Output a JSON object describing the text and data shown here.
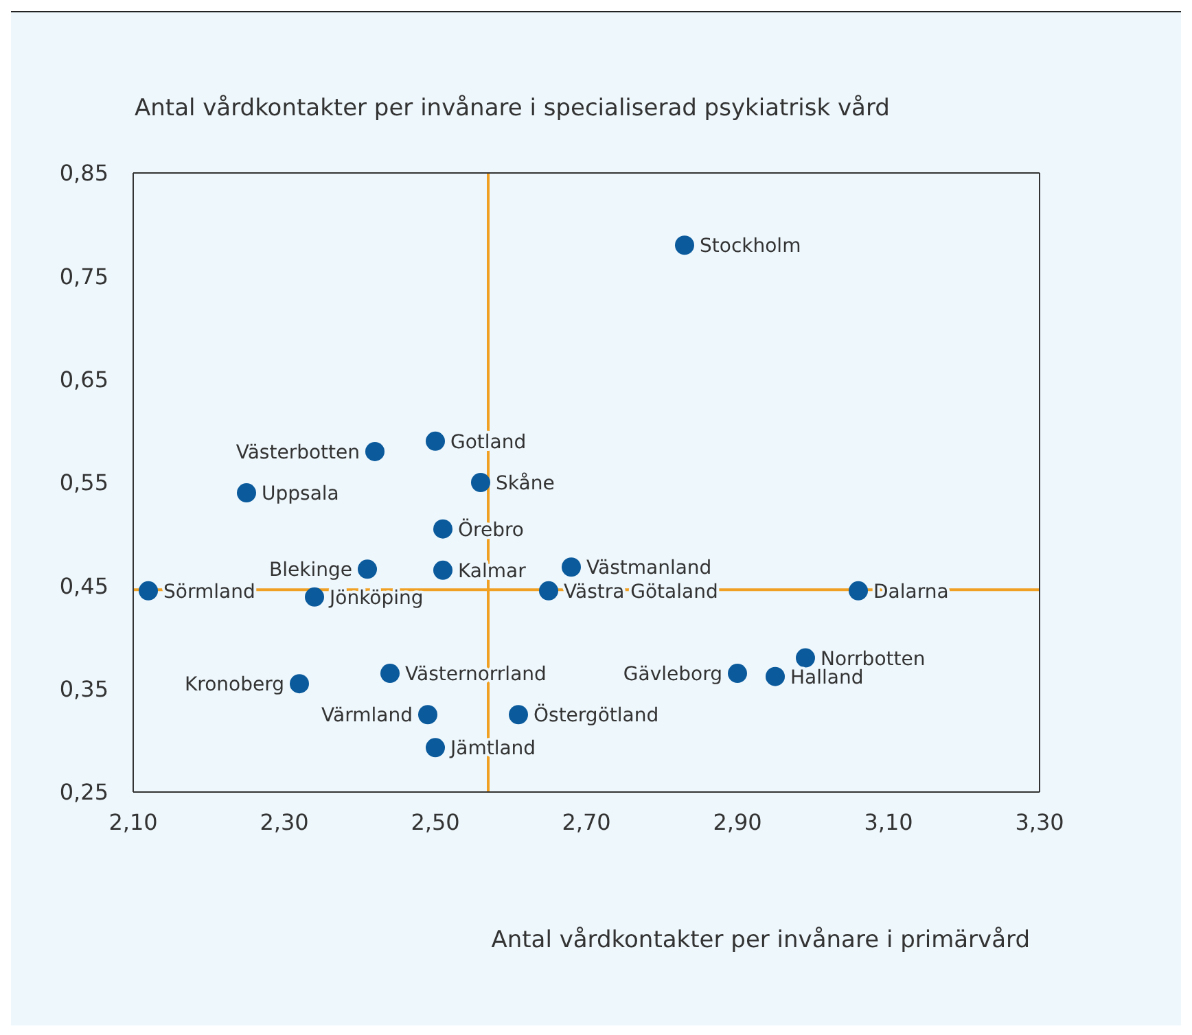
{
  "chart_data": {
    "type": "scatter",
    "xlabel": "Antal vårdkontakter per invånare i primärvård",
    "ylabel": "Antal vårdkontakter per invånare i specialiserad psykiatrisk vård",
    "marker": "circle",
    "grid": false,
    "legend": false,
    "xlim": [
      2.1,
      3.3
    ],
    "xticks": [
      {
        "value": 2.1,
        "label": "2,10"
      },
      {
        "value": 2.3,
        "label": "2,30"
      },
      {
        "value": 2.5,
        "label": "2,50"
      },
      {
        "value": 2.7,
        "label": "2,70"
      },
      {
        "value": 2.9,
        "label": "2,90"
      },
      {
        "value": 3.1,
        "label": "3,10"
      },
      {
        "value": 3.3,
        "label": "3,30"
      }
    ],
    "ylim": [
      0.25,
      0.85
    ],
    "yticks": [
      {
        "value": 0.25,
        "label": "0,25"
      },
      {
        "value": 0.35,
        "label": "0,35"
      },
      {
        "value": 0.45,
        "label": "0,45"
      },
      {
        "value": 0.55,
        "label": "0,55"
      },
      {
        "value": 0.65,
        "label": "0,65"
      },
      {
        "value": 0.75,
        "label": "0,75"
      },
      {
        "value": 0.85,
        "label": "0,85"
      }
    ],
    "ref_lines": [
      {
        "axis": "x",
        "value": 2.57,
        "color": "#f0a022"
      },
      {
        "axis": "y",
        "value": 0.446,
        "color": "#f0a022"
      }
    ],
    "series": [
      {
        "name": "Stockholm",
        "color": "#0a5a9c",
        "x": [
          2.83
        ],
        "values": [
          0.78
        ]
      },
      {
        "name": "Gotland",
        "color": "#0a5a9c",
        "x": [
          2.5
        ],
        "values": [
          0.59
        ]
      },
      {
        "name": "Västerbotten",
        "color": "#0a5a9c",
        "x": [
          2.42
        ],
        "values": [
          0.58
        ]
      },
      {
        "name": "Skåne",
        "color": "#0a5a9c",
        "x": [
          2.56
        ],
        "values": [
          0.55
        ]
      },
      {
        "name": "Uppsala",
        "color": "#0a5a9c",
        "x": [
          2.25
        ],
        "values": [
          0.54
        ]
      },
      {
        "name": "Örebro",
        "color": "#0a5a9c",
        "x": [
          2.51
        ],
        "values": [
          0.505
        ]
      },
      {
        "name": "Blekinge",
        "color": "#0a5a9c",
        "x": [
          2.41
        ],
        "values": [
          0.466
        ]
      },
      {
        "name": "Kalmar",
        "color": "#0a5a9c",
        "x": [
          2.51
        ],
        "values": [
          0.465
        ]
      },
      {
        "name": "Västmanland",
        "color": "#0a5a9c",
        "x": [
          2.68
        ],
        "values": [
          0.468
        ]
      },
      {
        "name": "Sörmland",
        "color": "#0a5a9c",
        "x": [
          2.12
        ],
        "values": [
          0.445
        ]
      },
      {
        "name": "Jönköping",
        "color": "#0a5a9c",
        "x": [
          2.34
        ],
        "values": [
          0.439
        ]
      },
      {
        "name": "Västra Götaland",
        "color": "#0a5a9c",
        "x": [
          2.65
        ],
        "values": [
          0.445
        ]
      },
      {
        "name": "Dalarna",
        "color": "#0a5a9c",
        "x": [
          3.06
        ],
        "values": [
          0.445
        ]
      },
      {
        "name": "Norrbotten",
        "color": "#0a5a9c",
        "x": [
          2.99
        ],
        "values": [
          0.38
        ]
      },
      {
        "name": "Gävleborg",
        "color": "#0a5a9c",
        "x": [
          2.9
        ],
        "values": [
          0.365
        ]
      },
      {
        "name": "Halland",
        "color": "#0a5a9c",
        "x": [
          2.95
        ],
        "values": [
          0.362
        ]
      },
      {
        "name": "Västernorrland",
        "color": "#0a5a9c",
        "x": [
          2.44
        ],
        "values": [
          0.365
        ]
      },
      {
        "name": "Kronoberg",
        "color": "#0a5a9c",
        "x": [
          2.32
        ],
        "values": [
          0.355
        ]
      },
      {
        "name": "Värmland",
        "color": "#0a5a9c",
        "x": [
          2.49
        ],
        "values": [
          0.325
        ]
      },
      {
        "name": "Östergötland",
        "color": "#0a5a9c",
        "x": [
          2.61
        ],
        "values": [
          0.325
        ]
      },
      {
        "name": "Jämtland",
        "color": "#0a5a9c",
        "x": [
          2.5
        ],
        "values": [
          0.293
        ]
      }
    ]
  }
}
